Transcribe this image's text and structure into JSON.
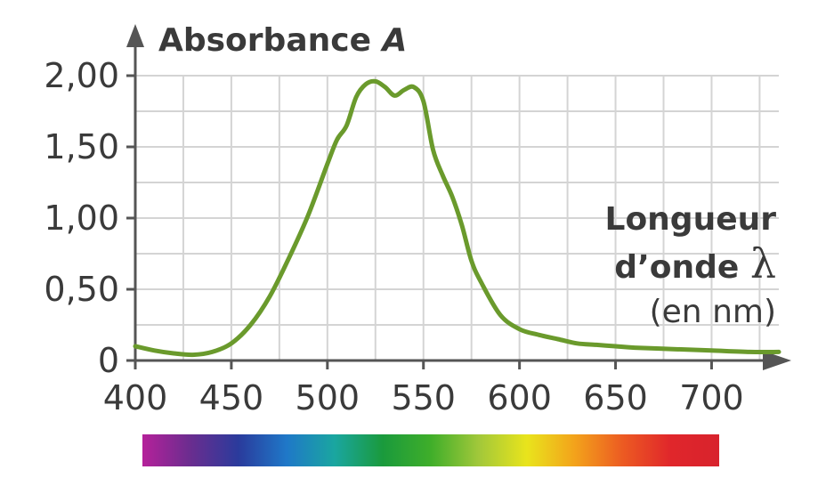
{
  "chart_data": {
    "type": "line",
    "ylabel": "Absorbance",
    "ylabel_symbol": "A",
    "xlabel_line1": "Longueur",
    "xlabel_line2": "d’onde",
    "xlabel_symbol": "λ",
    "xlabel_unit": "(en nm)",
    "xlim": [
      400,
      735
    ],
    "ylim": [
      0,
      2.0
    ],
    "xticks": [
      {
        "value": 400,
        "label": "400"
      },
      {
        "value": 450,
        "label": "450"
      },
      {
        "value": 500,
        "label": "500"
      },
      {
        "value": 550,
        "label": "550"
      },
      {
        "value": 600,
        "label": "600"
      },
      {
        "value": 650,
        "label": "650"
      },
      {
        "value": 700,
        "label": "700"
      }
    ],
    "yticks": [
      {
        "value": 0,
        "label": "0"
      },
      {
        "value": 0.5,
        "label": "0,50"
      },
      {
        "value": 1.0,
        "label": "1,00"
      },
      {
        "value": 1.5,
        "label": "1,50"
      },
      {
        "value": 2.0,
        "label": "2,00"
      }
    ],
    "grid": true,
    "series": [
      {
        "color": "#6a9a2c",
        "x": [
          400,
          410,
          420,
          430,
          440,
          450,
          460,
          470,
          480,
          490,
          500,
          505,
          510,
          515,
          520,
          525,
          530,
          535,
          540,
          545,
          550,
          555,
          560,
          565,
          570,
          575,
          580,
          590,
          600,
          610,
          620,
          630,
          640,
          650,
          660,
          680,
          700,
          720,
          735
        ],
        "y": [
          0.1,
          0.07,
          0.05,
          0.04,
          0.06,
          0.12,
          0.25,
          0.45,
          0.72,
          1.02,
          1.38,
          1.55,
          1.65,
          1.85,
          1.94,
          1.96,
          1.92,
          1.86,
          1.9,
          1.92,
          1.82,
          1.48,
          1.3,
          1.15,
          0.95,
          0.7,
          0.55,
          0.32,
          0.22,
          0.18,
          0.15,
          0.12,
          0.11,
          0.1,
          0.09,
          0.08,
          0.07,
          0.06,
          0.06
        ]
      }
    ],
    "spectrum_colors": [
      "#b5219a",
      "#6a2d8f",
      "#2a3b9c",
      "#1f78c8",
      "#1aa6a0",
      "#1a9a3c",
      "#3fae2a",
      "#a2c83a",
      "#e9e41c",
      "#f3a21b",
      "#ec5a22",
      "#e0262b",
      "#d8232d"
    ]
  }
}
